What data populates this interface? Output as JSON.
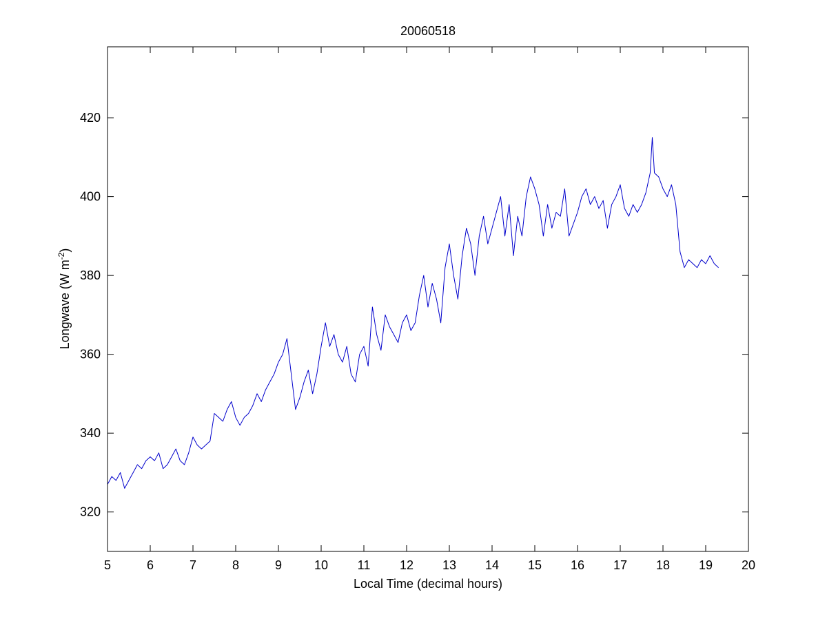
{
  "chart_data": {
    "type": "line",
    "title": "20060518",
    "xlabel": "Local Time (decimal hours)",
    "ylabel": "Longwave (W m",
    "ylabel_sup": "-2",
    "ylabel_close": ")",
    "xlim": [
      5,
      20
    ],
    "ylim": [
      310,
      438
    ],
    "x_ticks": [
      5,
      6,
      7,
      8,
      9,
      10,
      11,
      12,
      13,
      14,
      15,
      16,
      17,
      18,
      19,
      20
    ],
    "y_ticks": [
      320,
      340,
      360,
      380,
      400,
      420
    ],
    "grid": false,
    "line_color": "#0000cc",
    "series": [
      {
        "x": [
          5.0,
          5.1,
          5.2,
          5.3,
          5.4,
          5.5,
          5.6,
          5.7,
          5.8,
          5.9,
          6.0,
          6.1,
          6.2,
          6.3,
          6.4,
          6.5,
          6.6,
          6.7,
          6.8,
          6.9,
          7.0,
          7.1,
          7.2,
          7.3,
          7.4,
          7.5,
          7.6,
          7.7,
          7.8,
          7.9,
          8.0,
          8.1,
          8.2,
          8.3,
          8.4,
          8.5,
          8.6,
          8.7,
          8.8,
          8.9,
          9.0,
          9.1,
          9.2,
          9.3,
          9.4,
          9.5,
          9.6,
          9.7,
          9.8,
          9.9,
          10.0,
          10.1,
          10.2,
          10.3,
          10.4,
          10.5,
          10.6,
          10.7,
          10.8,
          10.9,
          11.0,
          11.1,
          11.2,
          11.3,
          11.4,
          11.5,
          11.6,
          11.7,
          11.8,
          11.9,
          12.0,
          12.1,
          12.2,
          12.3,
          12.4,
          12.5,
          12.6,
          12.7,
          12.8,
          12.9,
          13.0,
          13.1,
          13.2,
          13.3,
          13.4,
          13.5,
          13.6,
          13.7,
          13.8,
          13.9,
          14.0,
          14.1,
          14.2,
          14.3,
          14.4,
          14.5,
          14.6,
          14.7,
          14.8,
          14.9,
          15.0,
          15.1,
          15.2,
          15.3,
          15.4,
          15.5,
          15.6,
          15.7,
          15.8,
          15.9,
          16.0,
          16.1,
          16.2,
          16.3,
          16.4,
          16.5,
          16.6,
          16.7,
          16.8,
          16.9,
          17.0,
          17.1,
          17.2,
          17.3,
          17.4,
          17.5,
          17.6,
          17.7,
          17.75,
          17.8,
          17.9,
          18.0,
          18.1,
          18.2,
          18.3,
          18.4,
          18.5,
          18.6,
          18.7,
          18.8,
          18.9,
          19.0,
          19.1,
          19.2,
          19.3
        ],
        "y": [
          327,
          329,
          328,
          330,
          326,
          328,
          330,
          332,
          331,
          333,
          334,
          333,
          335,
          331,
          332,
          334,
          336,
          333,
          332,
          335,
          339,
          337,
          336,
          337,
          338,
          345,
          344,
          343,
          346,
          348,
          344,
          342,
          344,
          345,
          347,
          350,
          348,
          351,
          353,
          355,
          358,
          360,
          364,
          355,
          346,
          349,
          353,
          356,
          350,
          355,
          362,
          368,
          362,
          365,
          360,
          358,
          362,
          355,
          353,
          360,
          362,
          357,
          372,
          365,
          361,
          370,
          367,
          365,
          363,
          368,
          370,
          366,
          368,
          375,
          380,
          372,
          378,
          374,
          368,
          382,
          388,
          380,
          374,
          385,
          392,
          388,
          380,
          390,
          395,
          388,
          392,
          396,
          400,
          390,
          398,
          385,
          395,
          390,
          400,
          405,
          402,
          398,
          390,
          398,
          392,
          396,
          395,
          402,
          390,
          393,
          396,
          400,
          402,
          398,
          400,
          397,
          399,
          392,
          398,
          400,
          403,
          397,
          395,
          398,
          396,
          398,
          401,
          406,
          415,
          406,
          405,
          402,
          400,
          403,
          398,
          386,
          382,
          384,
          383,
          382,
          384,
          383,
          385,
          383,
          382
        ]
      }
    ]
  }
}
